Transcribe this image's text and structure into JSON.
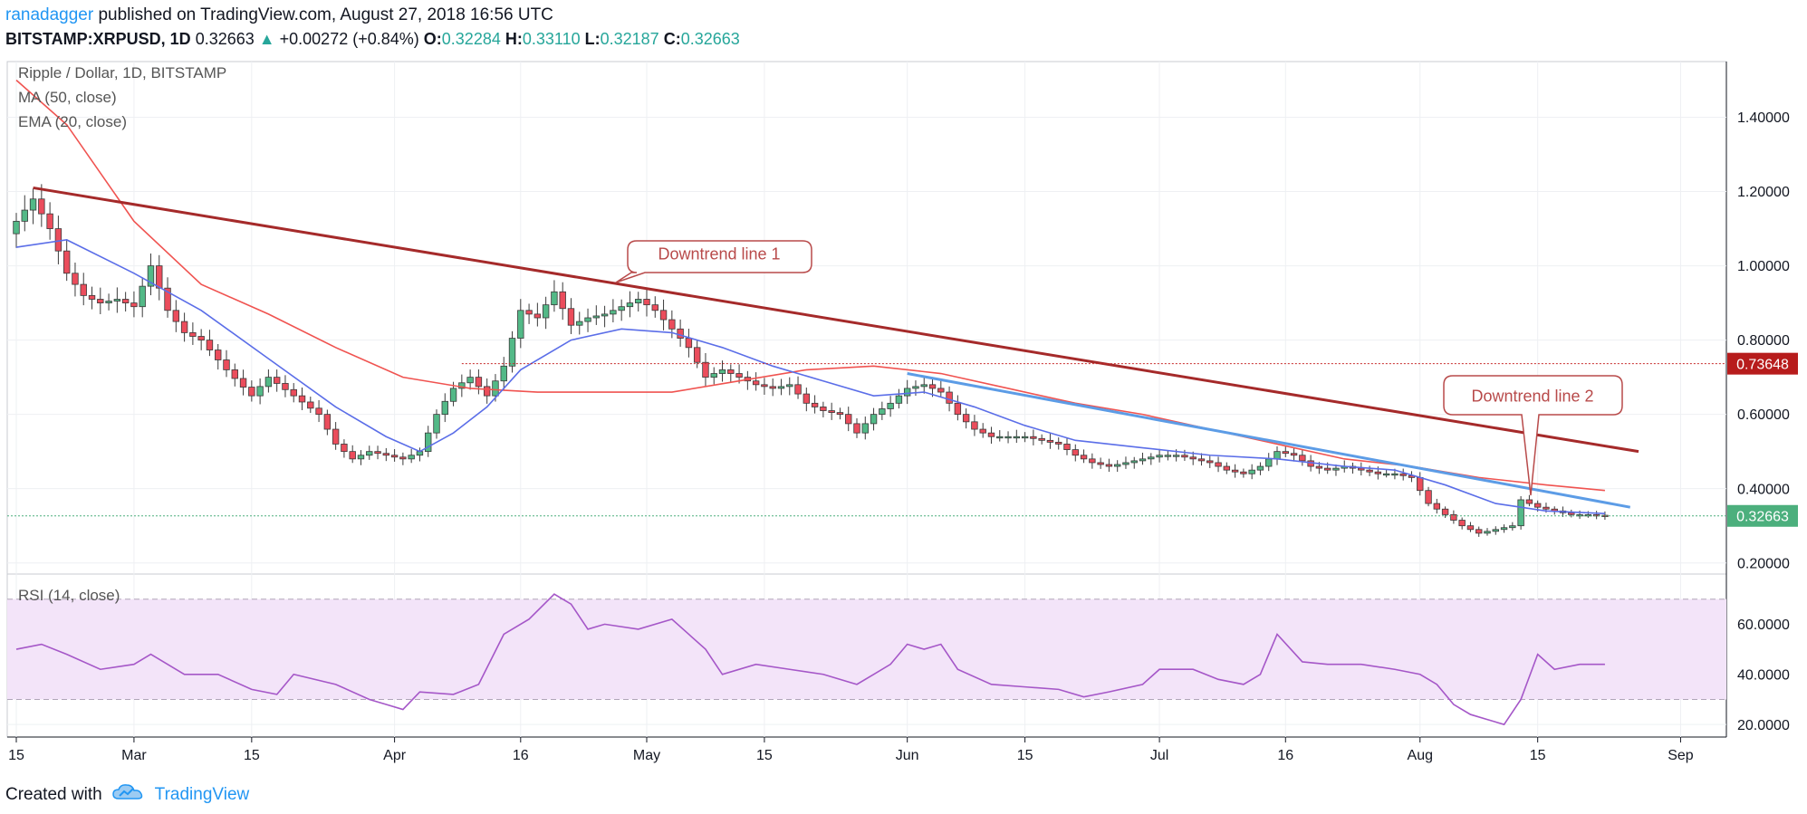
{
  "header": {
    "user": "ranadagger",
    "published_text": "published on TradingView.com, August 27, 2018 16:56 UTC",
    "symbol": "BITSTAMP:XRPUSD, 1D",
    "last": "0.32663",
    "change": "+0.00272 (+0.84%)",
    "o_label": "O:",
    "o_value": "0.32284",
    "h_label": "H:",
    "h_value": "0.33110",
    "l_label": "L:",
    "l_value": "0.32187",
    "c_label": "C:",
    "c_value": "0.32663"
  },
  "legend": {
    "title": "Ripple / Dollar, 1D, BITSTAMP",
    "ma": "MA (50, close)",
    "ema": "EMA (20, close)",
    "rsi": "RSI (14, close)"
  },
  "annotations": {
    "callout1": "Downtrend line 1",
    "callout2": "Downtrend line 2"
  },
  "price_tags": {
    "resistance": "0.73648",
    "current": "0.32663"
  },
  "footer": {
    "created": "Created with",
    "brand": "TradingView"
  },
  "colors": {
    "up_candle": "#53b987",
    "down_candle": "#eb4d5c",
    "ma": "#f05350",
    "ema": "#5b6ee8",
    "trend1": "#a52a2a",
    "trend2": "#5c9ce6",
    "rsi_line": "#a557c8",
    "rsi_band": "#f3e4f9",
    "tag_red": "#b71c1c",
    "tag_green": "#4caf7d",
    "accent_blue": "#2196f3"
  },
  "icons": {
    "brand_icon": "tradingview-cloud-icon"
  },
  "chart_data": {
    "type": "candlestick",
    "ylim": [
      0.17,
      1.55
    ],
    "yticks": [
      "1.40000",
      "1.20000",
      "1.00000",
      "0.80000",
      "0.60000",
      "0.40000",
      "0.20000"
    ],
    "yticks_values": [
      1.4,
      1.2,
      1.0,
      0.8,
      0.6,
      0.4,
      0.2
    ],
    "xticks": [
      "15",
      "Mar",
      "15",
      "Apr",
      "16",
      "May",
      "15",
      "Jun",
      "15",
      "Jul",
      "16",
      "Aug",
      "15",
      "Sep"
    ],
    "xticks_day_index": [
      0,
      14,
      28,
      45,
      60,
      75,
      89,
      106,
      120,
      136,
      151,
      167,
      181,
      198
    ],
    "date_range": [
      "2018-02-15",
      "2018-08-27"
    ],
    "price_points": [
      [
        0,
        1.12
      ],
      [
        2,
        1.18
      ],
      [
        4,
        1.1
      ],
      [
        6,
        0.98
      ],
      [
        8,
        0.92
      ],
      [
        10,
        0.9
      ],
      [
        12,
        0.91
      ],
      [
        14,
        0.89
      ],
      [
        16,
        1.0
      ],
      [
        18,
        0.88
      ],
      [
        20,
        0.82
      ],
      [
        22,
        0.8
      ],
      [
        25,
        0.72
      ],
      [
        28,
        0.65
      ],
      [
        30,
        0.7
      ],
      [
        33,
        0.65
      ],
      [
        36,
        0.6
      ],
      [
        38,
        0.52
      ],
      [
        40,
        0.48
      ],
      [
        42,
        0.5
      ],
      [
        44,
        0.49
      ],
      [
        46,
        0.48
      ],
      [
        48,
        0.5
      ],
      [
        50,
        0.6
      ],
      [
        52,
        0.67
      ],
      [
        54,
        0.7
      ],
      [
        56,
        0.65
      ],
      [
        58,
        0.73
      ],
      [
        60,
        0.88
      ],
      [
        62,
        0.86
      ],
      [
        64,
        0.93
      ],
      [
        66,
        0.84
      ],
      [
        68,
        0.86
      ],
      [
        70,
        0.87
      ],
      [
        72,
        0.89
      ],
      [
        74,
        0.91
      ],
      [
        76,
        0.88
      ],
      [
        78,
        0.83
      ],
      [
        80,
        0.78
      ],
      [
        82,
        0.7
      ],
      [
        84,
        0.72
      ],
      [
        86,
        0.7
      ],
      [
        88,
        0.68
      ],
      [
        90,
        0.67
      ],
      [
        92,
        0.68
      ],
      [
        94,
        0.63
      ],
      [
        96,
        0.61
      ],
      [
        98,
        0.6
      ],
      [
        100,
        0.55
      ],
      [
        102,
        0.6
      ],
      [
        104,
        0.63
      ],
      [
        106,
        0.67
      ],
      [
        108,
        0.68
      ],
      [
        110,
        0.66
      ],
      [
        112,
        0.6
      ],
      [
        114,
        0.56
      ],
      [
        116,
        0.54
      ],
      [
        118,
        0.54
      ],
      [
        120,
        0.54
      ],
      [
        122,
        0.53
      ],
      [
        124,
        0.52
      ],
      [
        126,
        0.49
      ],
      [
        128,
        0.47
      ],
      [
        130,
        0.46
      ],
      [
        132,
        0.47
      ],
      [
        134,
        0.48
      ],
      [
        136,
        0.49
      ],
      [
        138,
        0.49
      ],
      [
        140,
        0.48
      ],
      [
        142,
        0.47
      ],
      [
        144,
        0.45
      ],
      [
        146,
        0.44
      ],
      [
        148,
        0.46
      ],
      [
        150,
        0.5
      ],
      [
        152,
        0.49
      ],
      [
        154,
        0.46
      ],
      [
        156,
        0.45
      ],
      [
        158,
        0.46
      ],
      [
        160,
        0.45
      ],
      [
        162,
        0.44
      ],
      [
        164,
        0.44
      ],
      [
        166,
        0.43
      ],
      [
        168,
        0.36
      ],
      [
        170,
        0.33
      ],
      [
        172,
        0.3
      ],
      [
        174,
        0.28
      ],
      [
        176,
        0.29
      ],
      [
        178,
        0.3
      ],
      [
        179,
        0.37
      ],
      [
        181,
        0.35
      ],
      [
        183,
        0.34
      ],
      [
        185,
        0.33
      ],
      [
        187,
        0.33
      ],
      [
        189,
        0.3266
      ]
    ],
    "ma50": [
      [
        0,
        1.5
      ],
      [
        6,
        1.38
      ],
      [
        14,
        1.12
      ],
      [
        22,
        0.95
      ],
      [
        30,
        0.87
      ],
      [
        38,
        0.78
      ],
      [
        46,
        0.7
      ],
      [
        54,
        0.67
      ],
      [
        62,
        0.66
      ],
      [
        70,
        0.66
      ],
      [
        78,
        0.66
      ],
      [
        86,
        0.69
      ],
      [
        94,
        0.72
      ],
      [
        102,
        0.73
      ],
      [
        110,
        0.71
      ],
      [
        118,
        0.67
      ],
      [
        126,
        0.63
      ],
      [
        134,
        0.6
      ],
      [
        142,
        0.56
      ],
      [
        150,
        0.52
      ],
      [
        158,
        0.48
      ],
      [
        166,
        0.46
      ],
      [
        174,
        0.43
      ],
      [
        182,
        0.41
      ],
      [
        189,
        0.395
      ]
    ],
    "ema20": [
      [
        0,
        1.05
      ],
      [
        6,
        1.07
      ],
      [
        14,
        0.98
      ],
      [
        22,
        0.88
      ],
      [
        30,
        0.75
      ],
      [
        38,
        0.62
      ],
      [
        44,
        0.54
      ],
      [
        48,
        0.5
      ],
      [
        52,
        0.55
      ],
      [
        56,
        0.62
      ],
      [
        60,
        0.72
      ],
      [
        66,
        0.8
      ],
      [
        72,
        0.83
      ],
      [
        78,
        0.82
      ],
      [
        84,
        0.78
      ],
      [
        90,
        0.73
      ],
      [
        96,
        0.69
      ],
      [
        102,
        0.65
      ],
      [
        108,
        0.66
      ],
      [
        114,
        0.62
      ],
      [
        120,
        0.57
      ],
      [
        126,
        0.53
      ],
      [
        134,
        0.51
      ],
      [
        142,
        0.49
      ],
      [
        150,
        0.48
      ],
      [
        158,
        0.46
      ],
      [
        164,
        0.45
      ],
      [
        170,
        0.41
      ],
      [
        176,
        0.36
      ],
      [
        182,
        0.34
      ],
      [
        189,
        0.333
      ]
    ],
    "trend1": [
      [
        2,
        1.21
      ],
      [
        193,
        0.5
      ]
    ],
    "trend2": [
      [
        106,
        0.71
      ],
      [
        192,
        0.35
      ]
    ],
    "resistance_level": 0.73648,
    "current_level": 0.32663,
    "rsi": {
      "ylim": [
        15,
        80
      ],
      "yticks": [
        "60.0000",
        "40.0000",
        "20.0000"
      ],
      "yticks_values": [
        60,
        40,
        20
      ],
      "band": [
        30,
        70
      ],
      "points": [
        [
          0,
          50
        ],
        [
          3,
          52
        ],
        [
          6,
          48
        ],
        [
          10,
          42
        ],
        [
          14,
          44
        ],
        [
          16,
          48
        ],
        [
          20,
          40
        ],
        [
          24,
          40
        ],
        [
          28,
          34
        ],
        [
          31,
          32
        ],
        [
          33,
          40
        ],
        [
          38,
          36
        ],
        [
          42,
          30
        ],
        [
          44,
          28
        ],
        [
          46,
          26
        ],
        [
          48,
          33
        ],
        [
          52,
          32
        ],
        [
          55,
          36
        ],
        [
          58,
          56
        ],
        [
          61,
          62
        ],
        [
          64,
          72
        ],
        [
          66,
          68
        ],
        [
          68,
          58
        ],
        [
          70,
          60
        ],
        [
          74,
          58
        ],
        [
          78,
          62
        ],
        [
          80,
          56
        ],
        [
          82,
          50
        ],
        [
          84,
          40
        ],
        [
          88,
          44
        ],
        [
          92,
          42
        ],
        [
          96,
          40
        ],
        [
          100,
          36
        ],
        [
          102,
          40
        ],
        [
          104,
          44
        ],
        [
          106,
          52
        ],
        [
          108,
          50
        ],
        [
          110,
          52
        ],
        [
          112,
          42
        ],
        [
          116,
          36
        ],
        [
          120,
          35
        ],
        [
          124,
          34
        ],
        [
          127,
          31
        ],
        [
          130,
          33
        ],
        [
          134,
          36
        ],
        [
          136,
          42
        ],
        [
          140,
          42
        ],
        [
          143,
          38
        ],
        [
          146,
          36
        ],
        [
          148,
          40
        ],
        [
          150,
          56
        ],
        [
          153,
          45
        ],
        [
          156,
          44
        ],
        [
          160,
          44
        ],
        [
          164,
          42
        ],
        [
          167,
          40
        ],
        [
          169,
          36
        ],
        [
          171,
          28
        ],
        [
          173,
          24
        ],
        [
          175,
          22
        ],
        [
          177,
          20
        ],
        [
          179,
          30
        ],
        [
          181,
          48
        ],
        [
          183,
          42
        ],
        [
          186,
          44
        ],
        [
          189,
          44
        ]
      ]
    }
  }
}
